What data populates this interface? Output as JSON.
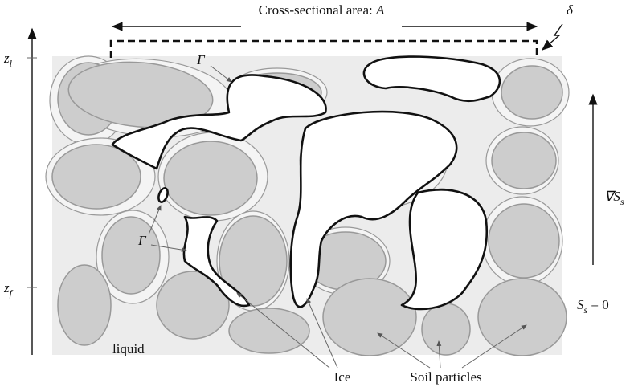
{
  "title": {
    "text": "Cross-sectional area: ",
    "var": "A"
  },
  "delta": "δ",
  "z_top": {
    "base": "z",
    "sub": "l"
  },
  "z_bottom": {
    "base": "z",
    "sub": "f"
  },
  "interface_labels": [
    "Γ",
    "Γ"
  ],
  "gradient": {
    "base": "∇S",
    "sub": "s"
  },
  "boundary": {
    "base": "S",
    "sub": "s",
    "rest": " = 0"
  },
  "labels": {
    "liquid": "liquid",
    "ice": "Ice",
    "soil": "Soil particles"
  }
}
